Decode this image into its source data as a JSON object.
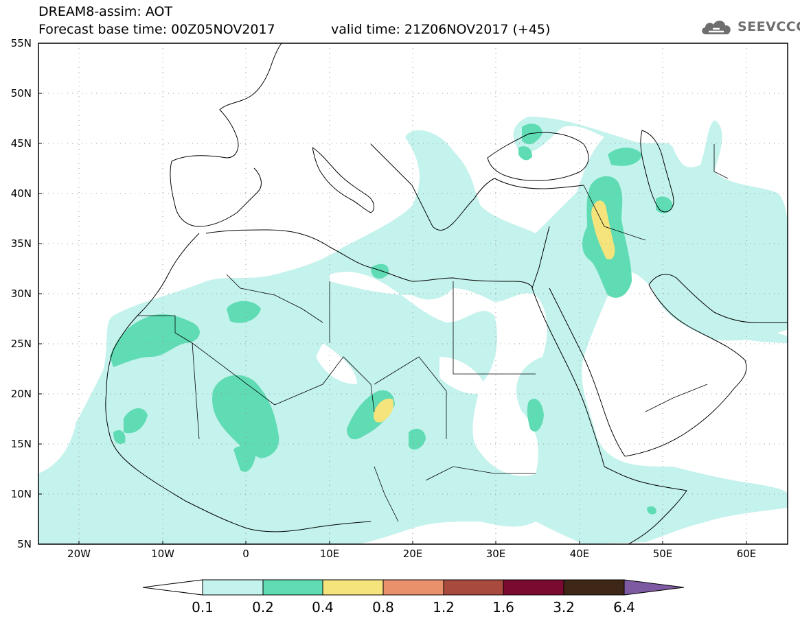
{
  "header": {
    "model_product": "DREAM8-assim: AOT",
    "base_time": "Forecast base time: 00Z05NOV2017",
    "valid_time": "valid time: 21Z06NOV2017 (+45)"
  },
  "logo": {
    "text": "SEEVCCC",
    "icon": "cloud-icon"
  },
  "map": {
    "lat_labels": [
      "55N",
      "50N",
      "45N",
      "40N",
      "35N",
      "30N",
      "25N",
      "20N",
      "15N",
      "10N",
      "5N"
    ],
    "lon_labels": [
      "20W",
      "10W",
      "0",
      "10E",
      "20E",
      "30E",
      "40E",
      "50E",
      "60E"
    ],
    "extent": {
      "lon": [
        -25,
        65
      ],
      "lat": [
        5,
        55
      ]
    },
    "grid": "dotted"
  },
  "colorbar": {
    "tick_labels": [
      "0.1",
      "0.2",
      "0.4",
      "0.8",
      "1.2",
      "1.6",
      "3.2",
      "6.4"
    ],
    "colors": [
      "#ffffff",
      "#c4f2ec",
      "#5fdcb4",
      "#f5e37c",
      "#e8916b",
      "#a84a3d",
      "#7a0a2f",
      "#3e2716",
      "#7e5aa3"
    ]
  },
  "legend_colors": {
    "aot_0_1": "#c4f2ec",
    "aot_0_2": "#5fdcb4",
    "aot_0_4": "#f5e37c"
  }
}
